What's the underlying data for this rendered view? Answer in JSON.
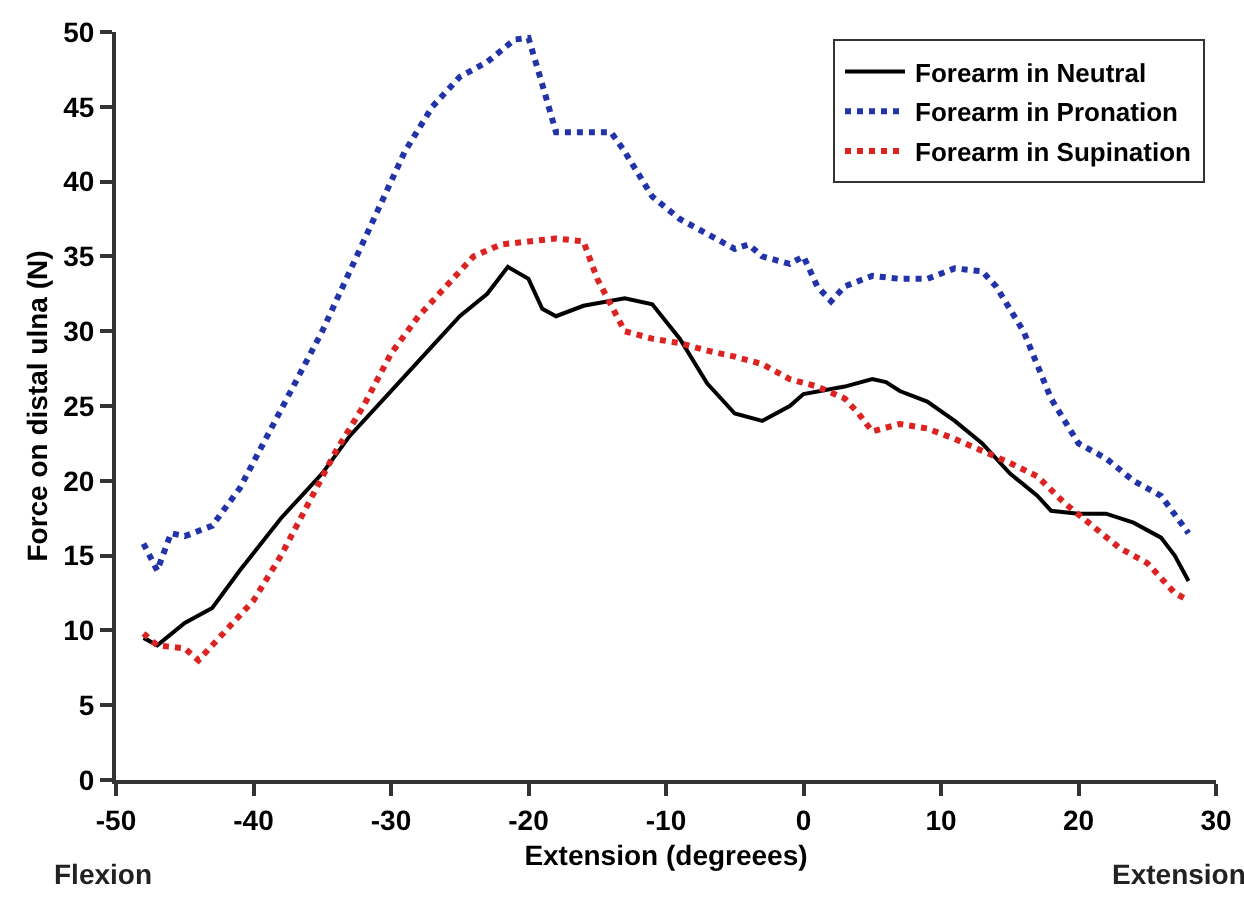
{
  "chart_data": {
    "type": "line",
    "xlabel": "Extension (degreees)",
    "ylabel": "Force on distal ulna (N)",
    "annotations": [
      "Flexion",
      "Extension"
    ],
    "xlim": [
      -50,
      30
    ],
    "xticks": [
      -50,
      -40,
      -30,
      -20,
      -10,
      0,
      10,
      20,
      30
    ],
    "ylim": [
      0,
      50
    ],
    "yticks": [
      0,
      5,
      10,
      15,
      20,
      25,
      30,
      35,
      40,
      45,
      50
    ],
    "grid": false,
    "legend": "top right",
    "marker": "none",
    "series": [
      {
        "name": "Forearm in Neutral",
        "color": "#000000",
        "line_style": "solid",
        "x": [
          -48,
          -47,
          -45,
          -43,
          -41,
          -38,
          -36,
          -35,
          -33,
          -30,
          -27,
          -25,
          -23,
          -21.5,
          -20,
          -19,
          -18,
          -16,
          -13,
          -11,
          -9,
          -7,
          -6,
          -5,
          -3,
          -1,
          0,
          3,
          5,
          6,
          7,
          9,
          11,
          13,
          15,
          17,
          18,
          20,
          22,
          24,
          26,
          27,
          28
        ],
        "values": [
          9.5,
          9,
          10.5,
          11.5,
          14,
          17.5,
          19.5,
          20.5,
          23,
          26,
          29,
          31,
          32.5,
          34.3,
          33.5,
          31.5,
          31,
          31.7,
          32.2,
          31.8,
          29.5,
          26.5,
          25.5,
          24.5,
          24,
          25,
          25.8,
          26.3,
          26.8,
          26.6,
          26,
          25.3,
          24,
          22.5,
          20.5,
          19,
          18,
          17.8,
          17.8,
          17.2,
          16.2,
          15,
          13.3
        ]
      },
      {
        "name": "Forearm in Pronation",
        "color": "#2233aa",
        "line_style": "dotted",
        "x": [
          -48,
          -47,
          -46,
          -45,
          -43,
          -41,
          -39,
          -37,
          -35,
          -33,
          -31,
          -29,
          -27,
          -25,
          -23,
          -21,
          -20,
          -19,
          -18,
          -14,
          -13,
          -11,
          -9,
          -7,
          -5,
          -4,
          -3,
          -1,
          0,
          1,
          2,
          3,
          5,
          7,
          9,
          11,
          13,
          14,
          16,
          18,
          20,
          22,
          24,
          26,
          28
        ],
        "values": [
          15.8,
          14,
          16.5,
          16.3,
          17,
          19.5,
          23,
          26.5,
          30,
          34,
          38,
          42,
          45,
          47,
          48,
          49.5,
          49.6,
          46.5,
          43.3,
          43.3,
          42,
          39,
          37.5,
          36.5,
          35.5,
          35.8,
          35,
          34.5,
          35,
          33,
          32,
          33,
          33.7,
          33.5,
          33.5,
          34.2,
          34,
          33,
          30,
          25.5,
          22.5,
          21.5,
          20,
          19,
          16.5
        ]
      },
      {
        "name": "Forearm in Supination",
        "color": "#dd2222",
        "line_style": "dotted",
        "x": [
          -48,
          -47,
          -45,
          -44,
          -42,
          -40,
          -38,
          -36,
          -34,
          -32,
          -30,
          -28,
          -26,
          -24,
          -22,
          -20,
          -18,
          -16,
          -15,
          -13,
          -11,
          -9,
          -7,
          -5,
          -3,
          -1,
          1,
          3,
          4,
          5,
          7,
          9,
          11,
          13,
          15,
          17,
          19,
          21,
          23,
          25,
          27,
          28
        ],
        "values": [
          9.8,
          9,
          8.8,
          8,
          10,
          12,
          15,
          18.5,
          22,
          25,
          28.5,
          31,
          33,
          35,
          35.8,
          36,
          36.2,
          36,
          33.5,
          30,
          29.5,
          29.2,
          28.7,
          28.3,
          27.8,
          26.8,
          26.3,
          25.5,
          24.5,
          23.3,
          23.8,
          23.5,
          22.8,
          22,
          21.2,
          20.3,
          18.5,
          17,
          15.5,
          14.5,
          12.5,
          12
        ]
      }
    ]
  }
}
